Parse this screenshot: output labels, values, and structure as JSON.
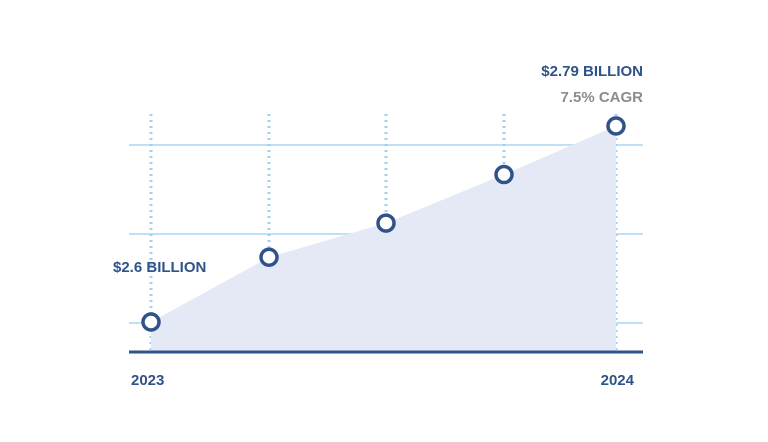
{
  "chart_data": {
    "type": "area",
    "x": [
      0,
      1,
      2,
      3,
      4
    ],
    "values": [
      0,
      0.36,
      0.55,
      0.82,
      1.09
    ],
    "annotations": {
      "start_value": "$2.6 BILLION",
      "end_value": "$2.79 BILLION",
      "growth": "7.5% CAGR"
    },
    "x_tick_labels": {
      "start": "2023",
      "end": "2024"
    },
    "grid": true,
    "colors": {
      "area": "#e4e9f5",
      "line_marker": "#2f5289",
      "grid_h": "#bfe0f6",
      "grid_v": "#9fd2f0",
      "axis": "#2f5289",
      "end_cagr_text": "#8c8c8c"
    }
  }
}
